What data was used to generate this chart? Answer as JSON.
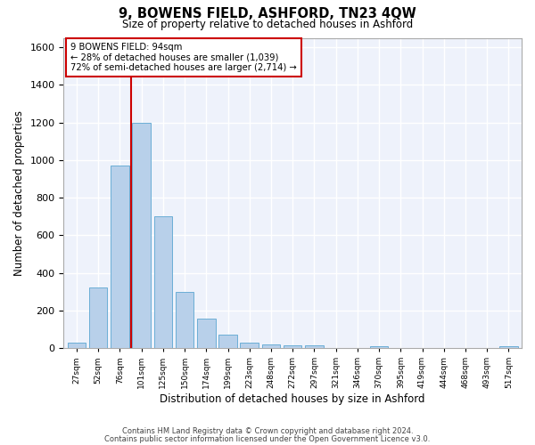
{
  "title": "9, BOWENS FIELD, ASHFORD, TN23 4QW",
  "subtitle": "Size of property relative to detached houses in Ashford",
  "xlabel": "Distribution of detached houses by size in Ashford",
  "ylabel": "Number of detached properties",
  "footer_line1": "Contains HM Land Registry data © Crown copyright and database right 2024.",
  "footer_line2": "Contains public sector information licensed under the Open Government Licence v3.0.",
  "annotation_line1": "9 BOWENS FIELD: 94sqm",
  "annotation_line2": "← 28% of detached houses are smaller (1,039)",
  "annotation_line3": "72% of semi-detached houses are larger (2,714) →",
  "categories": [
    "27sqm",
    "52sqm",
    "76sqm",
    "101sqm",
    "125sqm",
    "150sqm",
    "174sqm",
    "199sqm",
    "223sqm",
    "248sqm",
    "272sqm",
    "297sqm",
    "321sqm",
    "346sqm",
    "370sqm",
    "395sqm",
    "419sqm",
    "444sqm",
    "468sqm",
    "493sqm",
    "517sqm"
  ],
  "bar_centers": [
    1,
    2,
    3,
    4,
    5,
    6,
    7,
    8,
    9,
    10,
    11,
    12,
    13,
    14,
    15,
    16,
    17,
    18,
    19,
    20,
    21
  ],
  "values": [
    30,
    320,
    970,
    1200,
    700,
    300,
    155,
    70,
    30,
    20,
    15,
    15,
    0,
    0,
    10,
    0,
    0,
    0,
    0,
    0,
    10
  ],
  "bar_color": "#b8d0ea",
  "bar_edge_color": "#6baed6",
  "vline_bar_index": 3,
  "vline_color": "#cc0000",
  "annotation_box_color": "#cc0000",
  "background_color": "#eef2fb",
  "grid_color": "#ffffff",
  "ylim": [
    0,
    1650
  ],
  "yticks": [
    0,
    200,
    400,
    600,
    800,
    1000,
    1200,
    1400,
    1600
  ]
}
